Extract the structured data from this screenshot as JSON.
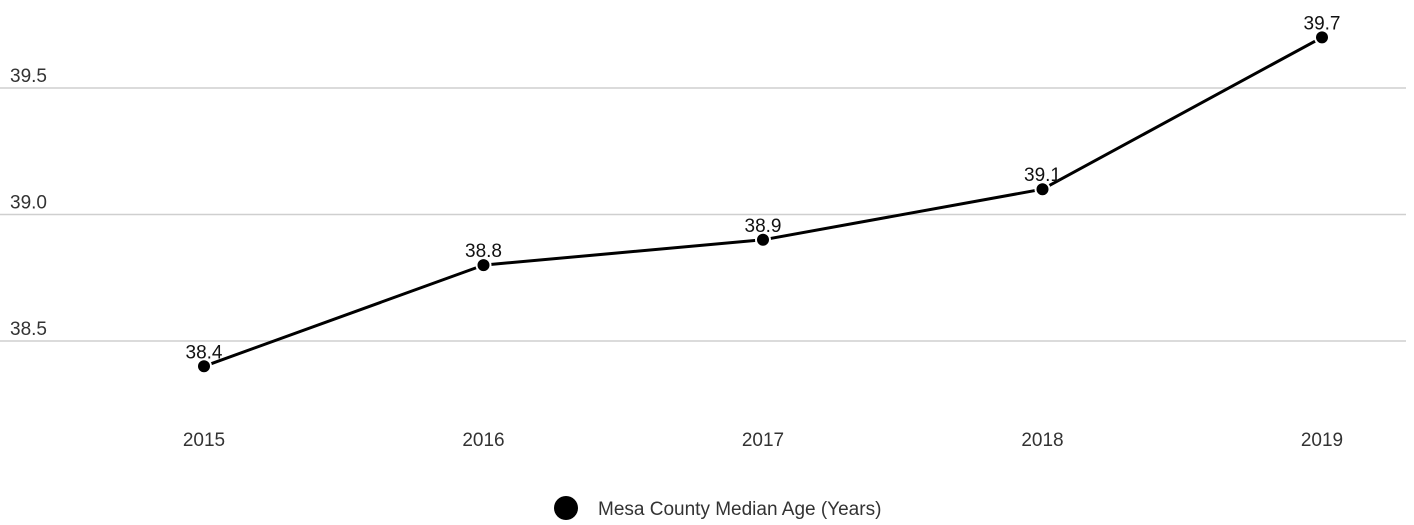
{
  "chart_data": {
    "type": "line",
    "title": "",
    "xlabel": "",
    "ylabel": "",
    "x": [
      "2015",
      "2016",
      "2017",
      "2018",
      "2019"
    ],
    "series": [
      {
        "name": "Mesa County Median Age (Years)",
        "values": [
          38.4,
          38.8,
          38.9,
          39.1,
          39.7
        ],
        "labels": [
          "38.4",
          "38.8",
          "38.9",
          "39.1",
          "39.7"
        ],
        "color": "#000000"
      }
    ],
    "yticks": [
      38.5,
      39.0,
      39.5
    ],
    "ytick_labels": [
      "38.5",
      "39.0",
      "39.5"
    ],
    "ylim": [
      38.2,
      39.8
    ],
    "grid": true,
    "legend": "bottom-center"
  }
}
